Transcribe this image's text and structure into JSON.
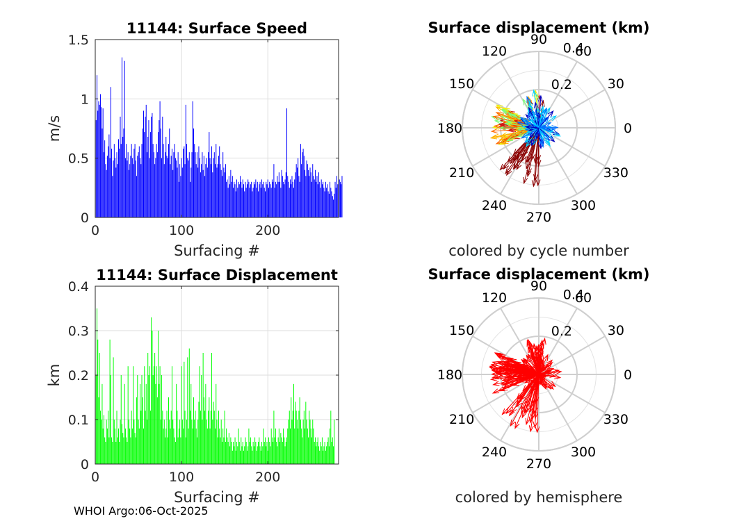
{
  "footer": "WHOI Argo:06-Oct-2025",
  "colors": {
    "speed_bar": "#0000ff",
    "disp_bar": "#00ff00",
    "hemisphere": "#ff0000",
    "grid": "#dddddd",
    "axis": "#262626"
  },
  "chart_data": [
    {
      "id": "speed",
      "type": "bar",
      "title": "11144: Surface Speed",
      "xlabel": "Surfacing #",
      "ylabel": "m/s",
      "xlim": [
        0,
        282
      ],
      "ylim": [
        0,
        1.5
      ],
      "xticks": [
        "0",
        "100",
        "200"
      ],
      "xtick_values": [
        0,
        100,
        200
      ],
      "yticks": [
        "0",
        "0.5",
        "1",
        "1.5"
      ],
      "ytick_values": [
        0,
        0.5,
        1,
        1.5
      ],
      "values": [
        0.82,
        1.2,
        0.9,
        0.98,
        0.95,
        1.04,
        0.93,
        0.75,
        0.92,
        0.55,
        0.65,
        0.45,
        0.4,
        0.52,
        0.6,
        0.7,
        0.5,
        1.1,
        0.58,
        0.35,
        0.48,
        0.62,
        0.5,
        0.42,
        0.55,
        0.45,
        0.66,
        0.58,
        0.85,
        0.62,
        1.35,
        0.68,
        0.75,
        1.32,
        0.5,
        0.62,
        0.48,
        0.55,
        0.4,
        0.45,
        0.52,
        0.62,
        0.5,
        0.45,
        0.58,
        0.62,
        0.48,
        0.35,
        0.52,
        0.55,
        0.6,
        0.5,
        0.45,
        0.62,
        0.75,
        0.9,
        0.72,
        0.85,
        0.95,
        0.55,
        0.68,
        0.82,
        0.5,
        0.72,
        0.85,
        0.88,
        0.62,
        0.55,
        0.45,
        0.5,
        0.62,
        0.55,
        0.72,
        0.82,
        0.98,
        0.75,
        0.5,
        0.85,
        0.62,
        0.45,
        0.55,
        0.68,
        0.52,
        0.5,
        0.62,
        0.75,
        0.45,
        0.52,
        0.58,
        0.4,
        0.55,
        0.62,
        0.5,
        0.48,
        0.42,
        0.55,
        0.3,
        0.45,
        0.35,
        0.5,
        0.42,
        0.58,
        0.6,
        0.45,
        0.95,
        0.62,
        0.5,
        0.48,
        0.55,
        0.3,
        0.42,
        0.55,
        0.98,
        0.75,
        0.62,
        0.55,
        0.45,
        0.55,
        0.42,
        0.6,
        0.5,
        0.38,
        0.45,
        0.55,
        0.4,
        0.52,
        0.35,
        0.45,
        0.5,
        0.42,
        0.55,
        0.72,
        0.5,
        0.45,
        0.6,
        0.38,
        0.5,
        0.55,
        0.45,
        0.62,
        0.42,
        0.45,
        0.52,
        0.6,
        0.45,
        0.4,
        0.35,
        0.55,
        0.42,
        0.38,
        0.45,
        0.3,
        0.32,
        0.25,
        0.35,
        0.28,
        0.4,
        0.3,
        0.35,
        0.25,
        0.3,
        0.28,
        0.22,
        0.32,
        0.25,
        0.3,
        0.28,
        0.35,
        0.3,
        0.25,
        0.32,
        0.28,
        0.22,
        0.3,
        0.25,
        0.28,
        0.32,
        0.3,
        0.25,
        0.28,
        0.3,
        0.22,
        0.25,
        0.3,
        0.28,
        0.32,
        0.25,
        0.3,
        0.22,
        0.28,
        0.3,
        0.25,
        0.32,
        0.28,
        0.3,
        0.25,
        0.22,
        0.3,
        0.28,
        0.32,
        0.25,
        0.3,
        0.28,
        0.25,
        0.32,
        0.3,
        0.45,
        0.25,
        0.3,
        0.28,
        0.35,
        0.3,
        0.38,
        0.3,
        0.25,
        0.4,
        0.35,
        0.3,
        0.28,
        0.32,
        0.38,
        0.92,
        0.35,
        0.3,
        0.25,
        0.32,
        0.28,
        0.35,
        0.3,
        0.25,
        0.32,
        0.38,
        0.45,
        0.42,
        0.5,
        0.35,
        0.3,
        0.62,
        0.45,
        0.55,
        0.58,
        0.52,
        0.4,
        0.35,
        0.48,
        0.45,
        0.4,
        0.35,
        0.42,
        0.38,
        0.3,
        0.45,
        0.35,
        0.32,
        0.4,
        0.3,
        0.35,
        0.28,
        0.38,
        0.3,
        0.25,
        0.32,
        0.28,
        0.3,
        0.25,
        0.22,
        0.3,
        0.25,
        0.28,
        0.22,
        0.2,
        0.3,
        0.25,
        0.22,
        0.18,
        0.15,
        0.2,
        0.3,
        0.25,
        0.35,
        0.28,
        0.4,
        0.32,
        0.3,
        0.28,
        0.35
      ]
    },
    {
      "id": "displacement",
      "type": "bar",
      "title": "11144: Surface Displacement",
      "xlabel": "Surfacing #",
      "ylabel": "km",
      "xlim": [
        0,
        282
      ],
      "ylim": [
        0,
        0.4
      ],
      "xticks": [
        "0",
        "100",
        "200"
      ],
      "xtick_values": [
        0,
        100,
        200
      ],
      "yticks": [
        "0",
        "0.1",
        "0.2",
        "0.3",
        "0.4"
      ],
      "ytick_values": [
        0,
        0.1,
        0.2,
        0.3,
        0.4
      ],
      "values": [
        0.2,
        0.35,
        0.28,
        0.15,
        0.25,
        0.12,
        0.1,
        0.18,
        0.08,
        0.11,
        0.06,
        0.05,
        0.1,
        0.08,
        0.12,
        0.06,
        0.28,
        0.2,
        0.06,
        0.05,
        0.24,
        0.1,
        0.08,
        0.05,
        0.12,
        0.06,
        0.08,
        0.05,
        0.1,
        0.2,
        0.09,
        0.07,
        0.06,
        0.18,
        0.08,
        0.06,
        0.05,
        0.22,
        0.1,
        0.08,
        0.06,
        0.12,
        0.08,
        0.22,
        0.1,
        0.07,
        0.06,
        0.15,
        0.2,
        0.1,
        0.08,
        0.18,
        0.12,
        0.2,
        0.15,
        0.08,
        0.22,
        0.12,
        0.18,
        0.1,
        0.25,
        0.2,
        0.22,
        0.12,
        0.33,
        0.3,
        0.2,
        0.22,
        0.25,
        0.18,
        0.22,
        0.15,
        0.3,
        0.18,
        0.22,
        0.1,
        0.2,
        0.12,
        0.08,
        0.1,
        0.06,
        0.08,
        0.12,
        0.06,
        0.15,
        0.1,
        0.08,
        0.12,
        0.22,
        0.1,
        0.08,
        0.06,
        0.05,
        0.18,
        0.12,
        0.06,
        0.08,
        0.1,
        0.06,
        0.22,
        0.1,
        0.08,
        0.23,
        0.12,
        0.06,
        0.1,
        0.24,
        0.08,
        0.26,
        0.12,
        0.18,
        0.1,
        0.08,
        0.15,
        0.1,
        0.12,
        0.08,
        0.06,
        0.1,
        0.14,
        0.22,
        0.12,
        0.2,
        0.1,
        0.25,
        0.15,
        0.12,
        0.18,
        0.1,
        0.08,
        0.12,
        0.15,
        0.08,
        0.12,
        0.25,
        0.1,
        0.14,
        0.12,
        0.08,
        0.18,
        0.1,
        0.06,
        0.12,
        0.08,
        0.06,
        0.1,
        0.05,
        0.08,
        0.06,
        0.12,
        0.05,
        0.08,
        0.06,
        0.05,
        0.07,
        0.04,
        0.06,
        0.05,
        0.03,
        0.05,
        0.04,
        0.06,
        0.03,
        0.05,
        0.04,
        0.08,
        0.05,
        0.03,
        0.06,
        0.04,
        0.05,
        0.03,
        0.04,
        0.06,
        0.05,
        0.03,
        0.04,
        0.08,
        0.05,
        0.06,
        0.04,
        0.03,
        0.05,
        0.04,
        0.06,
        0.05,
        0.03,
        0.04,
        0.05,
        0.06,
        0.04,
        0.03,
        0.05,
        0.04,
        0.08,
        0.05,
        0.06,
        0.04,
        0.05,
        0.03,
        0.06,
        0.05,
        0.04,
        0.08,
        0.06,
        0.05,
        0.12,
        0.06,
        0.08,
        0.05,
        0.04,
        0.06,
        0.08,
        0.05,
        0.07,
        0.06,
        0.05,
        0.08,
        0.06,
        0.04,
        0.05,
        0.06,
        0.08,
        0.1,
        0.12,
        0.08,
        0.15,
        0.1,
        0.12,
        0.18,
        0.08,
        0.14,
        0.12,
        0.1,
        0.08,
        0.12,
        0.15,
        0.1,
        0.08,
        0.06,
        0.1,
        0.12,
        0.08,
        0.14,
        0.1,
        0.08,
        0.06,
        0.12,
        0.1,
        0.08,
        0.06,
        0.1,
        0.08,
        0.05,
        0.06,
        0.04,
        0.05,
        0.06,
        0.04,
        0.03,
        0.05,
        0.04,
        0.06,
        0.03,
        0.04,
        0.05,
        0.03,
        0.04,
        0.05,
        0.06,
        0.04,
        0.08,
        0.12,
        0.05,
        0.06,
        0.04,
        0.1
      ]
    },
    {
      "id": "polar_cycle",
      "type": "polar",
      "title": "Surface displacement (km)",
      "xlabel": "colored by cycle number",
      "rlim": [
        0,
        0.4
      ],
      "r_ticks": [
        "0.2",
        "0.4"
      ],
      "r_tick_values": [
        0.2,
        0.4
      ],
      "theta_ticks": [
        "0",
        "30",
        "60",
        "90",
        "120",
        "150",
        "180",
        "210",
        "240",
        "270",
        "300",
        "330"
      ],
      "theta_tick_values": [
        0,
        30,
        60,
        90,
        120,
        150,
        180,
        210,
        240,
        270,
        300,
        330
      ],
      "coloring": "cycle",
      "cycle_colors": [
        "#8b0000",
        "#d01010",
        "#ff6a00",
        "#ffb300",
        "#f0f000",
        "#7cff7c",
        "#00d0ff",
        "#0070ff",
        "#0000c0"
      ]
    },
    {
      "id": "polar_hemisphere",
      "type": "polar",
      "title": "Surface displacement (km)",
      "xlabel": "colored by hemisphere",
      "rlim": [
        0,
        0.4
      ],
      "r_ticks": [
        "0.2",
        "0.4"
      ],
      "r_tick_values": [
        0.2,
        0.4
      ],
      "theta_ticks": [
        "0",
        "30",
        "60",
        "90",
        "120",
        "150",
        "180",
        "210",
        "240",
        "270",
        "300",
        "330"
      ],
      "theta_tick_values": [
        0,
        30,
        60,
        90,
        120,
        150,
        180,
        210,
        240,
        270,
        300,
        330
      ],
      "coloring": "hemisphere"
    }
  ]
}
